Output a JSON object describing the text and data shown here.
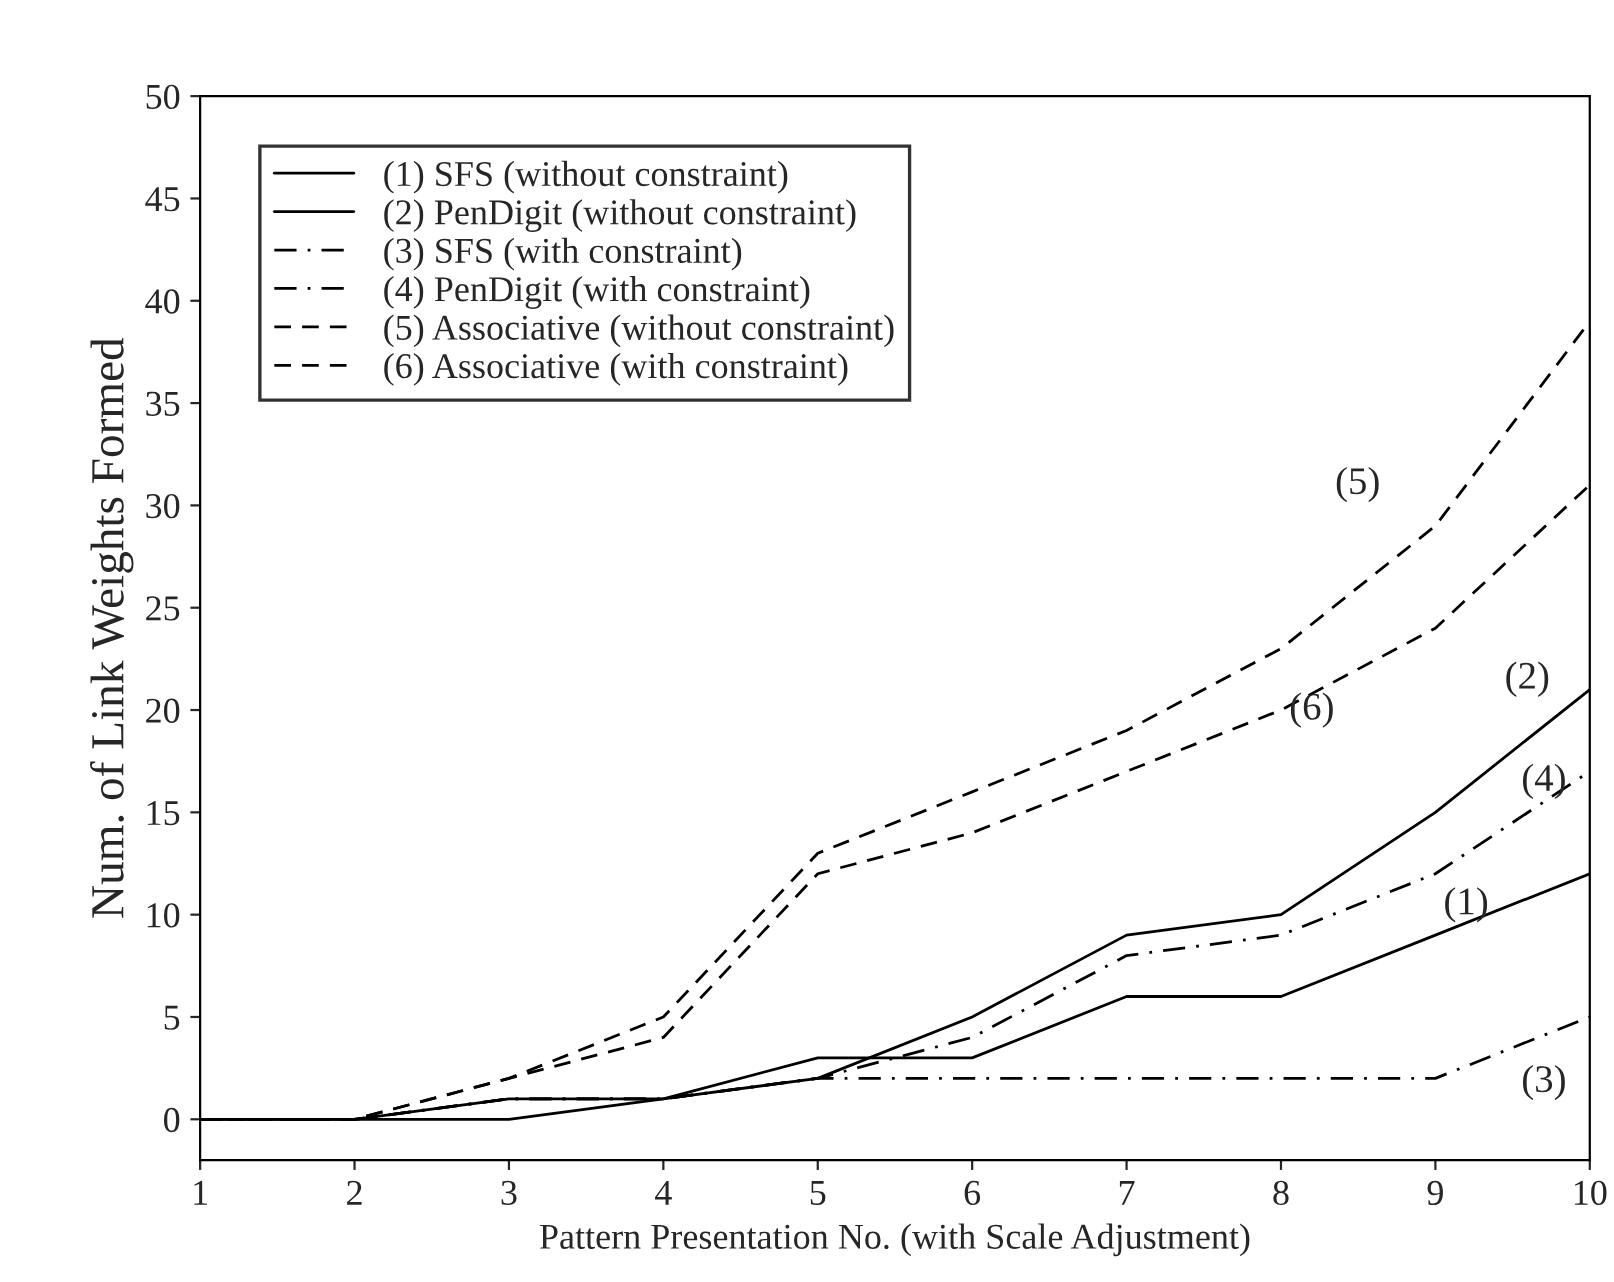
{
  "chart_data": {
    "type": "line",
    "xlabel": "Pattern Presentation No. (with Scale Adjustment)",
    "ylabel": "Num. of Link Weights Formed",
    "x": [
      1,
      2,
      3,
      4,
      5,
      6,
      7,
      8,
      9,
      10
    ],
    "series": [
      {
        "name": "(1) SFS (without constraint)",
        "color": "#000000",
        "line_style": "solid",
        "values": [
          0,
          0,
          1,
          1,
          3,
          3,
          6,
          6,
          9,
          12
        ]
      },
      {
        "name": "(2) PenDigit (without constraint)",
        "color": "#000000",
        "line_style": "solid",
        "values": [
          0,
          0,
          0,
          1,
          2,
          5,
          9,
          10,
          15,
          21
        ]
      },
      {
        "name": "(3) SFS (with constraint)",
        "color": "#000000",
        "line_style": "dashdot",
        "values": [
          0,
          0,
          1,
          1,
          2,
          2,
          2,
          2,
          2,
          5
        ]
      },
      {
        "name": "(4) PenDigit (with constraint)",
        "color": "#000000",
        "line_style": "dashdot",
        "values": [
          0,
          0,
          1,
          1,
          2,
          4,
          8,
          9,
          12,
          17
        ]
      },
      {
        "name": "(5) Associative (without constraint)",
        "color": "#000000",
        "line_style": "dashed",
        "values": [
          0,
          0,
          2,
          5,
          13,
          16,
          19,
          23,
          29,
          39
        ]
      },
      {
        "name": "(6) Associative (with constraint)",
        "color": "#000000",
        "line_style": "dashed",
        "values": [
          0,
          0,
          2,
          4,
          12,
          14,
          17,
          20,
          24,
          31
        ]
      }
    ],
    "annotations": [
      "(1)",
      "(2)",
      "(3)",
      "(4)",
      "(5)",
      "(6)"
    ],
    "xlim": [
      1,
      10
    ],
    "xticks": [
      1,
      2,
      3,
      4,
      5,
      6,
      7,
      8,
      9,
      10
    ],
    "ylim": [
      -2,
      50
    ],
    "yticks": [
      0,
      5,
      10,
      15,
      20,
      25,
      30,
      35,
      40,
      45,
      50
    ],
    "grid": false,
    "legend": "top left",
    "marker": "none"
  }
}
